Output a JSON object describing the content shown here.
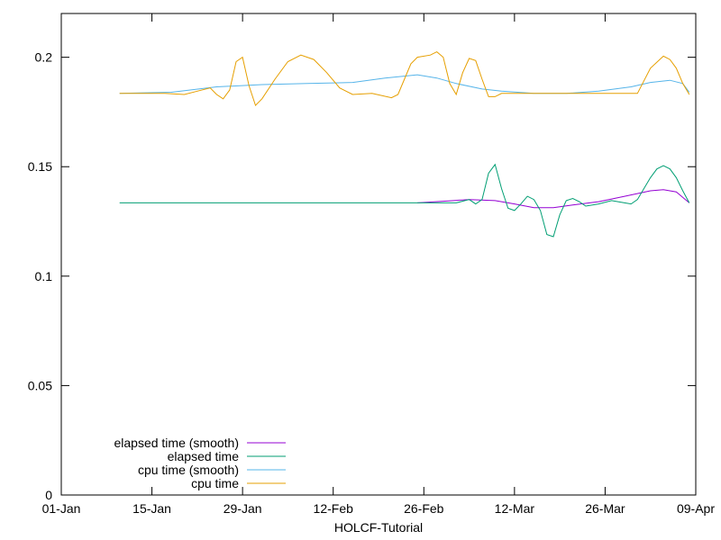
{
  "chart_data": {
    "type": "line",
    "title": "",
    "xlabel": "HOLCF-Tutorial",
    "ylabel": "",
    "x_axis_kind": "date",
    "year": 2023,
    "xlim": [
      "2023-01-01",
      "2023-04-09"
    ],
    "ylim": [
      0,
      0.22
    ],
    "x_ticks": [
      {
        "date": "2023-01-01",
        "label": "01-Jan"
      },
      {
        "date": "2023-01-15",
        "label": "15-Jan"
      },
      {
        "date": "2023-01-29",
        "label": "29-Jan"
      },
      {
        "date": "2023-02-12",
        "label": "12-Feb"
      },
      {
        "date": "2023-02-26",
        "label": "26-Feb"
      },
      {
        "date": "2023-03-12",
        "label": "12-Mar"
      },
      {
        "date": "2023-03-26",
        "label": "26-Mar"
      },
      {
        "date": "2023-04-09",
        "label": "09-Apr"
      }
    ],
    "y_ticks": [
      {
        "value": 0,
        "label": "0"
      },
      {
        "value": 0.05,
        "label": "0.05"
      },
      {
        "value": 0.1,
        "label": "0.1"
      },
      {
        "value": 0.15,
        "label": "0.15"
      },
      {
        "value": 0.2,
        "label": "0.2"
      }
    ],
    "grid": false,
    "legend_position": "bottom-left",
    "series": [
      {
        "name": "elapsed time (smooth)",
        "color": "#9400d3",
        "points": [
          [
            "2023-02-25",
            0.1335
          ],
          [
            "2023-03-01",
            0.1342
          ],
          [
            "2023-03-05",
            0.135
          ],
          [
            "2023-03-09",
            0.1345
          ],
          [
            "2023-03-12",
            0.133
          ],
          [
            "2023-03-15",
            0.1313
          ],
          [
            "2023-03-18",
            0.1313
          ],
          [
            "2023-03-21",
            0.1325
          ],
          [
            "2023-03-25",
            0.134
          ],
          [
            "2023-03-29",
            0.1365
          ],
          [
            "2023-04-02",
            0.139
          ],
          [
            "2023-04-04",
            0.1395
          ],
          [
            "2023-04-06",
            0.1385
          ],
          [
            "2023-04-08",
            0.1335
          ]
        ]
      },
      {
        "name": "elapsed time",
        "color": "#009e73",
        "points": [
          [
            "2023-01-10",
            0.1335
          ],
          [
            "2023-03-01",
            0.1335
          ],
          [
            "2023-03-03",
            0.1335
          ],
          [
            "2023-03-05",
            0.135
          ],
          [
            "2023-03-06",
            0.133
          ],
          [
            "2023-03-07",
            0.135
          ],
          [
            "2023-03-08",
            0.147
          ],
          [
            "2023-03-09",
            0.151
          ],
          [
            "2023-03-10",
            0.14
          ],
          [
            "2023-03-11",
            0.131
          ],
          [
            "2023-03-12",
            0.13
          ],
          [
            "2023-03-13",
            0.133
          ],
          [
            "2023-03-14",
            0.1365
          ],
          [
            "2023-03-15",
            0.135
          ],
          [
            "2023-03-16",
            0.13
          ],
          [
            "2023-03-17",
            0.119
          ],
          [
            "2023-03-18",
            0.118
          ],
          [
            "2023-03-19",
            0.128
          ],
          [
            "2023-03-20",
            0.1345
          ],
          [
            "2023-03-21",
            0.1355
          ],
          [
            "2023-03-22",
            0.134
          ],
          [
            "2023-03-23",
            0.132
          ],
          [
            "2023-03-25",
            0.133
          ],
          [
            "2023-03-27",
            0.1345
          ],
          [
            "2023-03-29",
            0.1335
          ],
          [
            "2023-03-30",
            0.133
          ],
          [
            "2023-03-31",
            0.135
          ],
          [
            "2023-04-01",
            0.14
          ],
          [
            "2023-04-02",
            0.145
          ],
          [
            "2023-04-03",
            0.149
          ],
          [
            "2023-04-04",
            0.1505
          ],
          [
            "2023-04-05",
            0.149
          ],
          [
            "2023-04-06",
            0.145
          ],
          [
            "2023-04-07",
            0.139
          ],
          [
            "2023-04-08",
            0.1335
          ]
        ]
      },
      {
        "name": "cpu time (smooth)",
        "color": "#56b4e9",
        "points": [
          [
            "2023-01-10",
            0.1835
          ],
          [
            "2023-01-18",
            0.184
          ],
          [
            "2023-01-25",
            0.1865
          ],
          [
            "2023-02-01",
            0.1875
          ],
          [
            "2023-02-08",
            0.188
          ],
          [
            "2023-02-15",
            0.1885
          ],
          [
            "2023-02-20",
            0.1905
          ],
          [
            "2023-02-25",
            0.192
          ],
          [
            "2023-02-28",
            0.1905
          ],
          [
            "2023-03-03",
            0.188
          ],
          [
            "2023-03-07",
            0.1855
          ],
          [
            "2023-03-10",
            0.1845
          ],
          [
            "2023-03-15",
            0.1835
          ],
          [
            "2023-03-20",
            0.1835
          ],
          [
            "2023-03-25",
            0.1845
          ],
          [
            "2023-03-30",
            0.1865
          ],
          [
            "2023-04-02",
            0.1885
          ],
          [
            "2023-04-05",
            0.1895
          ],
          [
            "2023-04-07",
            0.188
          ],
          [
            "2023-04-08",
            0.184
          ]
        ]
      },
      {
        "name": "cpu time",
        "color": "#e69f00",
        "points": [
          [
            "2023-01-10",
            0.1835
          ],
          [
            "2023-01-17",
            0.1835
          ],
          [
            "2023-01-20",
            0.183
          ],
          [
            "2023-01-22",
            0.1845
          ],
          [
            "2023-01-24",
            0.186
          ],
          [
            "2023-01-25",
            0.183
          ],
          [
            "2023-01-26",
            0.181
          ],
          [
            "2023-01-27",
            0.185
          ],
          [
            "2023-01-28",
            0.198
          ],
          [
            "2023-01-29",
            0.2
          ],
          [
            "2023-01-30",
            0.187
          ],
          [
            "2023-01-31",
            0.178
          ],
          [
            "2023-02-01",
            0.181
          ],
          [
            "2023-02-03",
            0.19
          ],
          [
            "2023-02-05",
            0.198
          ],
          [
            "2023-02-07",
            0.201
          ],
          [
            "2023-02-09",
            0.199
          ],
          [
            "2023-02-11",
            0.193
          ],
          [
            "2023-02-13",
            0.186
          ],
          [
            "2023-02-15",
            0.183
          ],
          [
            "2023-02-18",
            0.1835
          ],
          [
            "2023-02-21",
            0.1815
          ],
          [
            "2023-02-22",
            0.183
          ],
          [
            "2023-02-24",
            0.197
          ],
          [
            "2023-02-25",
            0.2
          ],
          [
            "2023-02-27",
            0.201
          ],
          [
            "2023-02-28",
            0.2025
          ],
          [
            "2023-03-01",
            0.2
          ],
          [
            "2023-03-02",
            0.188
          ],
          [
            "2023-03-03",
            0.183
          ],
          [
            "2023-03-04",
            0.193
          ],
          [
            "2023-03-05",
            0.1995
          ],
          [
            "2023-03-06",
            0.1985
          ],
          [
            "2023-03-07",
            0.19
          ],
          [
            "2023-03-08",
            0.182
          ],
          [
            "2023-03-09",
            0.182
          ],
          [
            "2023-03-10",
            0.1835
          ],
          [
            "2023-03-31",
            0.1835
          ],
          [
            "2023-04-02",
            0.195
          ],
          [
            "2023-04-04",
            0.2005
          ],
          [
            "2023-04-05",
            0.199
          ],
          [
            "2023-04-06",
            0.195
          ],
          [
            "2023-04-07",
            0.188
          ],
          [
            "2023-04-08",
            0.183
          ]
        ]
      }
    ]
  }
}
